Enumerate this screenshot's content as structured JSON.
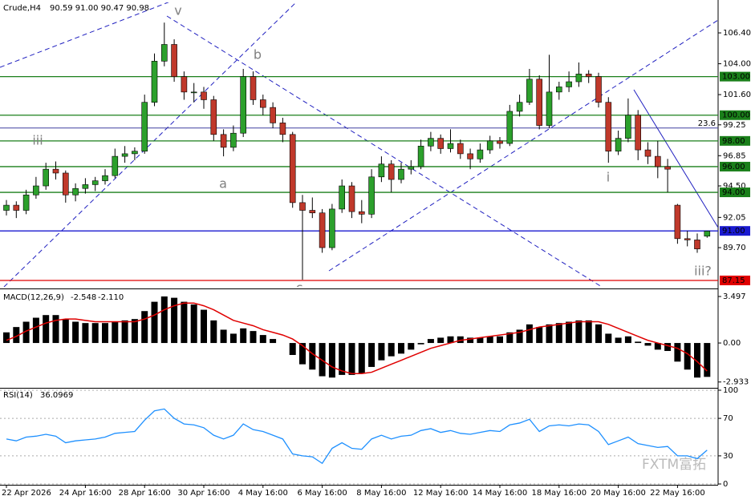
{
  "chart_data": [
    {
      "type": "candlestick",
      "symbol": "Crude,H4",
      "ohlc_text": "90.59 91.00 90.47 90.98",
      "watermark": "FXTM富拓",
      "up_color": "#2ca02c",
      "down_color": "#c0392b",
      "ylim": [
        86.65,
        108.77
      ],
      "yticks": [
        {
          "value": 106.4,
          "label": "106.40"
        },
        {
          "value": 104,
          "label": "104.00"
        },
        {
          "value": 101.6,
          "label": "101.60"
        },
        99.25,
        96.85,
        {
          "value": 94.5,
          "label": "94.50"
        },
        92.05,
        {
          "value": 89.7,
          "label": "89.70"
        }
      ],
      "levels": [
        {
          "value": 103,
          "label": "103.00",
          "color": "#1a7f1a"
        },
        {
          "value": 100,
          "label": "100.00",
          "color": "#1a7f1a"
        },
        {
          "value": 98,
          "label": "98.00",
          "color": "#1a7f1a"
        },
        {
          "value": 96,
          "label": "96.00",
          "color": "#1a7f1a"
        },
        {
          "value": 94,
          "label": "94.00",
          "color": "#1a7f1a"
        },
        {
          "value": 91,
          "label": "91.00",
          "color": "#1a1ad0"
        },
        {
          "value": 87.15,
          "label": "87.15",
          "color": "#e00000"
        }
      ],
      "fib_level": {
        "value": 99.0,
        "label": "23.6",
        "color": "#4040a0"
      },
      "annotations": [
        "v",
        "b",
        "iii",
        "a",
        "i",
        "iii?",
        "c"
      ],
      "categories": [
        "22 Apr 2026",
        null,
        null,
        null,
        null,
        null,
        null,
        null,
        "24 Apr 16:00",
        null,
        null,
        null,
        null,
        null,
        "28 Apr 16:00",
        null,
        null,
        null,
        null,
        null,
        "30 Apr 16:00",
        null,
        null,
        null,
        null,
        null,
        "4 May 16:00",
        null,
        null,
        null,
        null,
        null,
        "6 May 16:00",
        null,
        null,
        null,
        null,
        null,
        "8 May 16:00",
        null,
        null,
        null,
        null,
        null,
        "12 May 16:00",
        null,
        null,
        null,
        null,
        null,
        "14 May 16:00",
        null,
        null,
        null,
        null,
        null,
        "18 May 16:00",
        null,
        null,
        null,
        null,
        null,
        "20 May 16:00",
        null,
        null,
        null,
        null,
        null,
        "22 May 16:00",
        null,
        null,
        null
      ],
      "candles": [
        [
          92.6,
          93.4,
          92.2,
          93.0
        ],
        [
          93.0,
          93.3,
          92.0,
          92.6
        ],
        [
          92.6,
          94.2,
          92.3,
          93.8
        ],
        [
          93.8,
          95.2,
          93.5,
          94.5
        ],
        [
          94.5,
          96.3,
          94.2,
          95.8
        ],
        [
          95.8,
          96.4,
          95.0,
          95.5
        ],
        [
          95.5,
          95.7,
          93.2,
          93.8
        ],
        [
          93.8,
          94.7,
          93.3,
          94.3
        ],
        [
          94.3,
          95.1,
          93.9,
          94.6
        ],
        [
          94.6,
          95.2,
          94.1,
          94.9
        ],
        [
          94.9,
          95.8,
          94.6,
          95.3
        ],
        [
          95.3,
          97.4,
          95.1,
          96.8
        ],
        [
          96.8,
          97.6,
          96.3,
          97.0
        ],
        [
          97.0,
          97.5,
          96.5,
          97.2
        ],
        [
          97.2,
          101.6,
          97.0,
          101.0
        ],
        [
          101.0,
          104.8,
          100.7,
          104.2
        ],
        [
          104.2,
          107.2,
          103.8,
          105.5
        ],
        [
          105.5,
          105.9,
          102.6,
          103.0
        ],
        [
          103.0,
          103.4,
          101.2,
          101.8
        ],
        [
          101.8,
          102.5,
          101.0,
          101.8
        ],
        [
          101.8,
          102.2,
          100.5,
          101.2
        ],
        [
          101.2,
          101.5,
          98.0,
          98.5
        ],
        [
          98.5,
          98.9,
          96.8,
          97.5
        ],
        [
          97.5,
          99.2,
          97.2,
          98.6
        ],
        [
          98.6,
          103.6,
          98.3,
          103.0
        ],
        [
          103.0,
          103.4,
          100.8,
          101.2
        ],
        [
          101.2,
          101.6,
          100.0,
          100.6
        ],
        [
          100.6,
          101.0,
          99.0,
          99.4
        ],
        [
          99.4,
          99.8,
          97.9,
          98.5
        ],
        [
          98.5,
          98.7,
          92.8,
          93.2
        ],
        [
          93.2,
          93.8,
          87.2,
          92.6
        ],
        [
          92.6,
          93.6,
          92.0,
          92.4
        ],
        [
          92.4,
          92.7,
          89.3,
          89.7
        ],
        [
          89.7,
          93.1,
          89.5,
          92.7
        ],
        [
          92.7,
          95.0,
          92.4,
          94.5
        ],
        [
          94.5,
          94.8,
          92.0,
          92.5
        ],
        [
          92.5,
          93.4,
          91.6,
          92.3
        ],
        [
          92.3,
          95.8,
          92.0,
          95.2
        ],
        [
          95.2,
          96.8,
          94.8,
          96.2
        ],
        [
          96.2,
          96.5,
          94.0,
          95.0
        ],
        [
          95.0,
          96.3,
          94.7,
          95.8
        ],
        [
          95.8,
          96.5,
          95.4,
          96.0
        ],
        [
          96.0,
          98.1,
          95.8,
          97.6
        ],
        [
          97.6,
          98.7,
          97.2,
          98.2
        ],
        [
          98.2,
          98.5,
          97.0,
          97.4
        ],
        [
          97.4,
          98.9,
          97.1,
          97.8
        ],
        [
          97.8,
          98.1,
          96.6,
          97.0
        ],
        [
          97.0,
          97.4,
          95.8,
          96.6
        ],
        [
          96.6,
          97.8,
          96.3,
          97.3
        ],
        [
          97.3,
          98.4,
          97.0,
          98.0
        ],
        [
          98.0,
          98.3,
          97.4,
          97.8
        ],
        [
          97.8,
          100.8,
          97.6,
          100.3
        ],
        [
          100.3,
          101.6,
          99.9,
          101.0
        ],
        [
          101.0,
          103.6,
          100.8,
          102.8
        ],
        [
          102.8,
          103.1,
          98.9,
          99.2
        ],
        [
          99.2,
          104.7,
          99.0,
          101.8
        ],
        [
          101.8,
          102.6,
          101.2,
          102.2
        ],
        [
          102.2,
          103.4,
          101.8,
          102.6
        ],
        [
          102.6,
          104.1,
          102.2,
          103.2
        ],
        [
          103.2,
          103.5,
          102.5,
          103.0
        ],
        [
          103.0,
          103.3,
          100.6,
          101.0
        ],
        [
          101.0,
          101.4,
          96.3,
          97.2
        ],
        [
          97.2,
          98.8,
          96.9,
          98.2
        ],
        [
          98.2,
          101.3,
          97.9,
          100.0
        ],
        [
          100.0,
          100.4,
          96.5,
          97.3
        ],
        [
          97.3,
          97.9,
          96.2,
          96.8
        ],
        [
          96.8,
          98.0,
          95.1,
          96.0
        ],
        [
          96.0,
          96.6,
          94.0,
          95.8
        ],
        [
          93.0,
          93.1,
          90.0,
          90.4
        ],
        [
          90.4,
          91.0,
          89.8,
          90.3
        ],
        [
          90.3,
          90.8,
          89.3,
          89.6
        ],
        [
          90.59,
          91.0,
          90.47,
          90.98
        ]
      ]
    },
    {
      "type": "macd",
      "name": "MACD(12,26,9)",
      "main_text": "-2.548",
      "signal_text": "-2.110",
      "ylim": [
        -3.25,
        3.92
      ],
      "yticks": [
        3.497,
        {
          "value": 0,
          "label": "0.00"
        },
        -2.933
      ],
      "histogram": {
        "color": "#000000",
        "values": [
          0.8,
          1.2,
          1.6,
          1.9,
          2.1,
          2.1,
          1.8,
          1.6,
          1.5,
          1.5,
          1.5,
          1.6,
          1.7,
          1.8,
          2.4,
          3.1,
          3.5,
          3.4,
          3.1,
          2.9,
          2.5,
          1.7,
          1.0,
          0.7,
          1.1,
          0.9,
          0.6,
          0.3,
          0.0,
          -0.9,
          -1.6,
          -2.0,
          -2.5,
          -2.6,
          -2.4,
          -2.4,
          -2.3,
          -1.8,
          -1.3,
          -1.0,
          -0.8,
          -0.5,
          -0.1,
          0.3,
          0.4,
          0.5,
          0.5,
          0.4,
          0.4,
          0.5,
          0.5,
          0.8,
          1.0,
          1.4,
          1.2,
          1.4,
          1.5,
          1.6,
          1.7,
          1.7,
          1.4,
          0.7,
          0.4,
          0.5,
          0.1,
          -0.2,
          -0.5,
          -0.6,
          -1.4,
          -2.0,
          -2.6,
          -2.548
        ]
      },
      "signal": {
        "color": "#e00000",
        "values": [
          0.2,
          0.5,
          0.9,
          1.2,
          1.5,
          1.7,
          1.8,
          1.8,
          1.7,
          1.6,
          1.6,
          1.6,
          1.6,
          1.6,
          1.8,
          2.1,
          2.5,
          2.8,
          3.0,
          3.0,
          2.8,
          2.5,
          2.1,
          1.7,
          1.5,
          1.3,
          1.0,
          0.8,
          0.6,
          0.3,
          -0.2,
          -0.8,
          -1.3,
          -1.8,
          -2.1,
          -2.3,
          -2.3,
          -2.2,
          -1.9,
          -1.6,
          -1.3,
          -1.0,
          -0.7,
          -0.4,
          -0.2,
          0.0,
          0.2,
          0.3,
          0.4,
          0.5,
          0.6,
          0.7,
          0.8,
          1.0,
          1.2,
          1.3,
          1.4,
          1.5,
          1.6,
          1.6,
          1.6,
          1.4,
          1.1,
          0.8,
          0.5,
          0.2,
          0.0,
          -0.2,
          -0.4,
          -0.8,
          -1.4,
          -2.11
        ]
      }
    },
    {
      "type": "line",
      "name": "RSI(14)",
      "value_text": "36.0969",
      "ylim": [
        0,
        100
      ],
      "yticks": [
        100,
        70,
        30,
        0
      ],
      "color": "#1e90ff",
      "values": [
        48,
        46,
        50,
        51,
        53,
        51,
        44,
        46,
        47,
        48,
        50,
        54,
        55,
        56,
        68,
        78,
        80,
        70,
        64,
        63,
        60,
        52,
        48,
        52,
        64,
        58,
        56,
        52,
        48,
        32,
        30,
        29,
        22,
        38,
        44,
        38,
        37,
        48,
        52,
        48,
        51,
        52,
        57,
        59,
        55,
        57,
        54,
        53,
        55,
        57,
        56,
        63,
        65,
        69,
        56,
        62,
        63,
        62,
        64,
        63,
        56,
        42,
        46,
        50,
        43,
        41,
        39,
        40,
        30,
        30,
        27,
        36.0969
      ]
    }
  ]
}
